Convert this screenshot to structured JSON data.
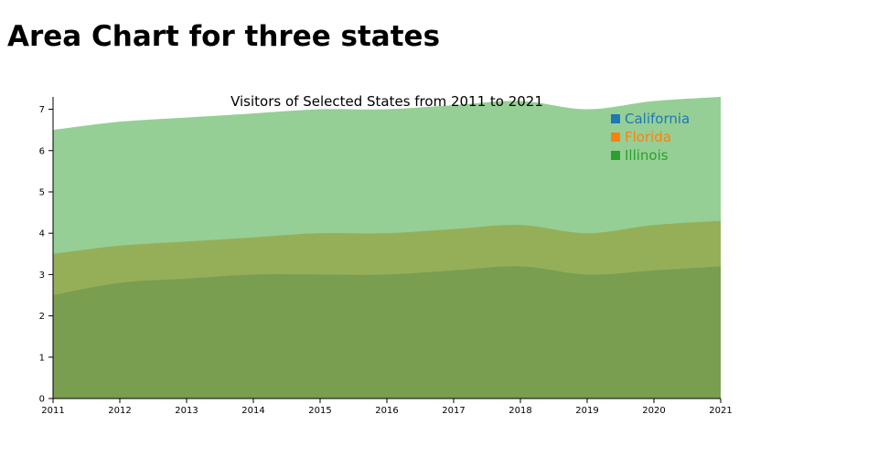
{
  "page": {
    "title": "Area Chart for three states"
  },
  "chart_data": {
    "type": "area",
    "title": "Visitors of Selected States from 2011 to 2021",
    "xlabel": "",
    "ylabel": "",
    "x": [
      2011,
      2012,
      2013,
      2014,
      2015,
      2016,
      2017,
      2018,
      2019,
      2020,
      2021
    ],
    "xlim": [
      2011,
      2021
    ],
    "ylim": [
      0,
      7.3
    ],
    "y_ticks": [
      0,
      1,
      2,
      3,
      4,
      5,
      6,
      7
    ],
    "grid": false,
    "legend_position": "top-right",
    "series": [
      {
        "name": "California",
        "color": "#1f77b4",
        "values": [
          2.5,
          2.8,
          2.9,
          3.0,
          3.0,
          3.0,
          3.1,
          3.2,
          3.0,
          3.1,
          3.2
        ]
      },
      {
        "name": "Florida",
        "color": "#ff7f0e",
        "values": [
          3.5,
          3.7,
          3.8,
          3.9,
          4.0,
          4.0,
          4.1,
          4.2,
          4.0,
          4.2,
          4.3
        ]
      },
      {
        "name": "Illinois",
        "color": "#2ca02c",
        "values": [
          6.5,
          6.7,
          6.8,
          6.9,
          7.0,
          7.0,
          7.1,
          7.2,
          7.0,
          7.2,
          7.3
        ]
      }
    ]
  }
}
